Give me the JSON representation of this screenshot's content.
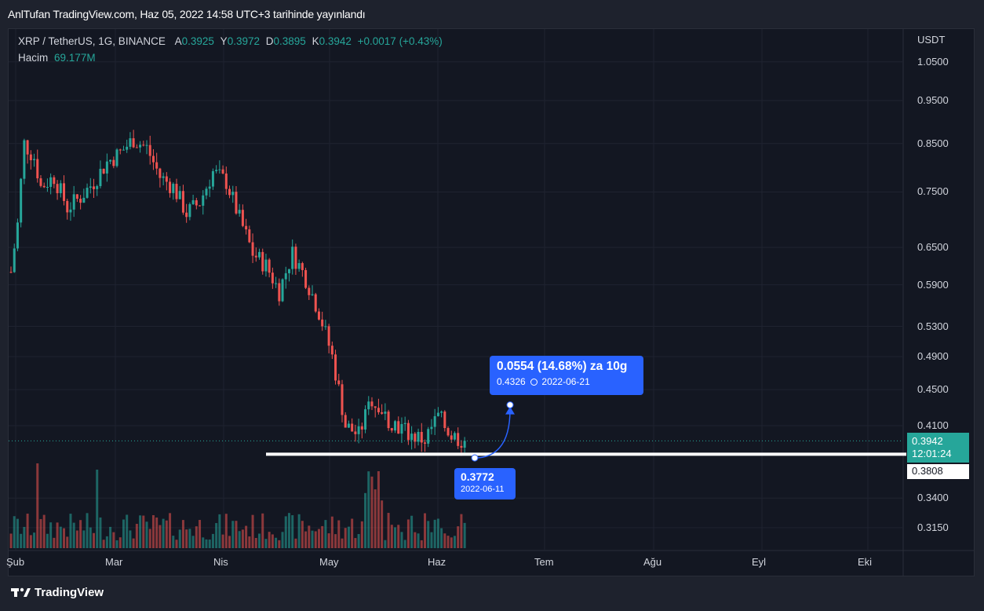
{
  "header": {
    "publish_line": "AnlTufan TradingView.com, Haz 05, 2022 14:58 UTC+3 tarihinde yayınlandı"
  },
  "legend": {
    "symbol": "XRP / TetherUS, 1G, BINANCE",
    "o_label": "A",
    "o_val": "0.3925",
    "h_label": "Y",
    "h_val": "0.3972",
    "l_label": "D",
    "l_val": "0.3895",
    "c_label": "K",
    "c_val": "0.3942",
    "change": "+0.0017 (+0.43%)",
    "volume_label": "Hacim",
    "volume_val": "69.177M"
  },
  "price_axis": {
    "currency": "USDT",
    "ticks": [
      "1.0500",
      "0.9500",
      "0.8500",
      "0.7500",
      "0.6500",
      "0.5900",
      "0.5300",
      "0.4900",
      "0.4500",
      "0.4100",
      "0.3400",
      "0.3150"
    ]
  },
  "time_axis": {
    "ticks": [
      "Şub",
      "Mar",
      "Nis",
      "May",
      "Haz",
      "Tem",
      "Ağu",
      "Eyl",
      "Eki"
    ]
  },
  "last_price": {
    "value": "0.3942",
    "countdown": "12:01:24"
  },
  "level_tag": "0.3808",
  "projection": {
    "headline": "0.0554 (14.68%) za 10g",
    "target_price": "0.4326",
    "target_date": "2022-06-21",
    "start_price": "0.3772",
    "start_date": "2022-06-11"
  },
  "brand": "TradingView",
  "colors": {
    "up": "#26a69a",
    "down": "#ef5350",
    "callout": "#2962ff",
    "background": "#131722"
  },
  "chart_data": {
    "type": "candlestick",
    "title": "XRP / TetherUS, 1G, BINANCE",
    "log_scale": true,
    "grid": true,
    "ylim": [
      0.3,
      1.1
    ],
    "x_range_months": [
      "Şub",
      "Mar",
      "Nis",
      "May",
      "Haz",
      "Tem",
      "Ağu",
      "Eyl",
      "Eki"
    ],
    "series": [
      {
        "name": "close_path_approx",
        "x": [
          1,
          3,
          5,
          8,
          10,
          14,
          18,
          22,
          26,
          30,
          34,
          38,
          42,
          46,
          50,
          54,
          58,
          62,
          66,
          70,
          74,
          78,
          82,
          86,
          90,
          94,
          98,
          102,
          106,
          110,
          114,
          118,
          122,
          126,
          130,
          134,
          138
        ],
        "values": [
          0.61,
          0.69,
          0.85,
          0.82,
          0.76,
          0.78,
          0.72,
          0.74,
          0.77,
          0.81,
          0.83,
          0.86,
          0.84,
          0.78,
          0.76,
          0.71,
          0.73,
          0.79,
          0.77,
          0.7,
          0.64,
          0.62,
          0.58,
          0.64,
          0.6,
          0.55,
          0.49,
          0.41,
          0.4,
          0.44,
          0.42,
          0.41,
          0.4,
          0.395,
          0.42,
          0.4,
          0.3942
        ]
      }
    ],
    "support_level": 0.3808,
    "projection": {
      "from": 0.3772,
      "to": 0.4326,
      "change": 0.0554,
      "change_pct": 14.68,
      "days": 10
    }
  }
}
